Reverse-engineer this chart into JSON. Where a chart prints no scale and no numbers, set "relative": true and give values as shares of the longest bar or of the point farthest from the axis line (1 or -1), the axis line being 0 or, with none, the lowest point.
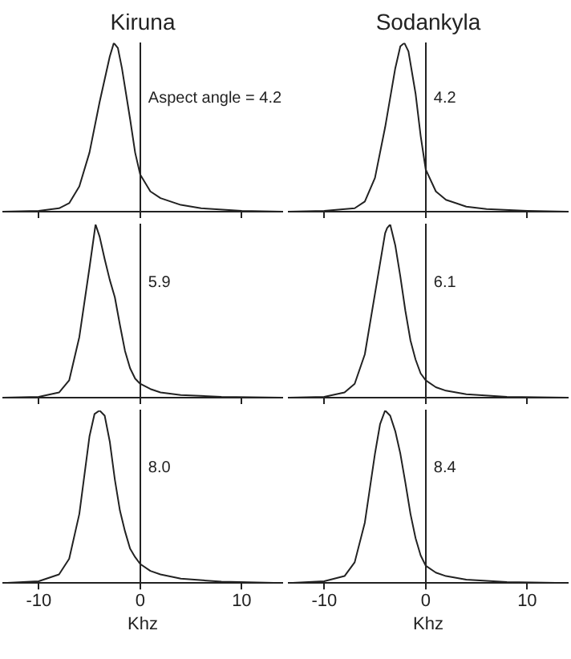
{
  "chart_data": [
    {
      "type": "line",
      "title": "Kiruna",
      "relative": true,
      "xlim": [
        -13.5,
        14
      ],
      "xticks": [
        -10,
        0,
        10
      ],
      "tick_labels": false,
      "annotations": [
        "Aspect angle = 4.2"
      ],
      "x": [
        -13.5,
        -10,
        -8,
        -7,
        -6,
        -5,
        -4,
        -3,
        -2.6,
        -2.2,
        -1.8,
        -1,
        -0.5,
        0,
        1,
        2,
        4,
        6,
        10,
        14
      ],
      "series": [
        {
          "color": "#222222",
          "values": [
            0,
            0.005,
            0.02,
            0.05,
            0.15,
            0.35,
            0.65,
            0.92,
            1,
            0.97,
            0.85,
            0.55,
            0.35,
            0.22,
            0.12,
            0.08,
            0.04,
            0.02,
            0.005,
            0
          ]
        }
      ]
    },
    {
      "type": "line",
      "title": "Sodankyla",
      "relative": true,
      "xlim": [
        -13.5,
        14
      ],
      "xticks": [
        -10,
        0,
        10
      ],
      "tick_labels": false,
      "annotations": [
        "4.2"
      ],
      "x": [
        -13.5,
        -10,
        -7,
        -6,
        -5,
        -4,
        -3,
        -2.5,
        -2.1,
        -1.7,
        -1,
        -0.5,
        0,
        1,
        2,
        4,
        6,
        10,
        14
      ],
      "series": [
        {
          "color": "#222222",
          "values": [
            0,
            0.005,
            0.02,
            0.06,
            0.2,
            0.5,
            0.85,
            0.98,
            1,
            0.95,
            0.7,
            0.45,
            0.25,
            0.12,
            0.07,
            0.03,
            0.015,
            0.005,
            0
          ]
        }
      ]
    },
    {
      "type": "line",
      "relative": true,
      "xlim": [
        -13.5,
        14
      ],
      "xticks": [
        -10,
        0,
        10
      ],
      "tick_labels": false,
      "annotations": [
        "5.9"
      ],
      "x": [
        -13.5,
        -10,
        -8,
        -7,
        -6,
        -5,
        -4.4,
        -4,
        -3.5,
        -3,
        -2.5,
        -2,
        -1.5,
        -1,
        -0.5,
        0,
        1,
        2,
        4,
        8,
        14
      ],
      "series": [
        {
          "color": "#222222",
          "values": [
            0,
            0.005,
            0.03,
            0.1,
            0.35,
            0.75,
            1,
            0.93,
            0.8,
            0.68,
            0.58,
            0.42,
            0.27,
            0.17,
            0.11,
            0.08,
            0.05,
            0.03,
            0.015,
            0.005,
            0
          ]
        }
      ]
    },
    {
      "type": "line",
      "relative": true,
      "xlim": [
        -13.5,
        14
      ],
      "xticks": [
        -10,
        0,
        10
      ],
      "tick_labels": false,
      "annotations": [
        "6.1"
      ],
      "x": [
        -13.5,
        -10,
        -8,
        -7,
        -6,
        -5,
        -4,
        -3.8,
        -3.5,
        -3,
        -2.5,
        -2,
        -1.5,
        -1,
        -0.5,
        0,
        1,
        2,
        4,
        8,
        14
      ],
      "series": [
        {
          "color": "#222222",
          "values": [
            0,
            0.005,
            0.03,
            0.08,
            0.25,
            0.6,
            0.95,
            0.98,
            1,
            0.88,
            0.7,
            0.5,
            0.33,
            0.22,
            0.14,
            0.1,
            0.06,
            0.04,
            0.02,
            0.005,
            0
          ]
        }
      ]
    },
    {
      "type": "line",
      "relative": true,
      "xlim": [
        -13.5,
        14
      ],
      "xticks": [
        -10,
        0,
        10
      ],
      "tick_labels": "x",
      "xlabel": "Khz",
      "annotations": [
        "8.0"
      ],
      "x": [
        -13.5,
        -10,
        -8,
        -7,
        -6,
        -5,
        -4.5,
        -4,
        -3.5,
        -3,
        -2.5,
        -2,
        -1.5,
        -1,
        -0.5,
        0,
        1,
        2,
        4,
        8,
        14
      ],
      "series": [
        {
          "color": "#222222",
          "values": [
            0,
            0.01,
            0.05,
            0.14,
            0.4,
            0.85,
            0.98,
            1,
            0.97,
            0.82,
            0.6,
            0.42,
            0.3,
            0.2,
            0.15,
            0.11,
            0.07,
            0.05,
            0.025,
            0.008,
            0
          ]
        }
      ]
    },
    {
      "type": "line",
      "relative": true,
      "xlim": [
        -13.5,
        14
      ],
      "xticks": [
        -10,
        0,
        10
      ],
      "tick_labels": "x",
      "xlabel": "Khz",
      "annotations": [
        "8.4"
      ],
      "x": [
        -13.5,
        -10,
        -8,
        -7,
        -6,
        -5,
        -4.5,
        -4,
        -3.5,
        -3,
        -2.5,
        -2,
        -1.5,
        -1,
        -0.5,
        0,
        1,
        2,
        4,
        8,
        14
      ],
      "series": [
        {
          "color": "#222222",
          "values": [
            0,
            0.01,
            0.04,
            0.12,
            0.35,
            0.75,
            0.92,
            1,
            0.97,
            0.88,
            0.75,
            0.58,
            0.4,
            0.26,
            0.16,
            0.1,
            0.06,
            0.04,
            0.02,
            0.006,
            0
          ]
        }
      ]
    }
  ]
}
